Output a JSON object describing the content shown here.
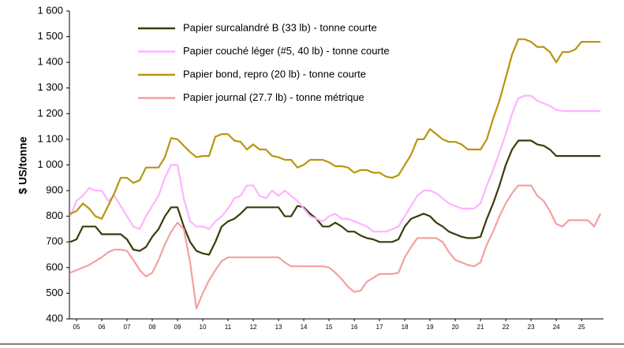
{
  "chart_data": {
    "type": "line",
    "y_label": "$ US/tonne",
    "x": [
      4.75,
      5,
      5.25,
      5.5,
      5.75,
      6,
      6.25,
      6.5,
      6.75,
      7,
      7.25,
      7.5,
      7.75,
      8,
      8.25,
      8.5,
      8.75,
      9,
      9.25,
      9.5,
      9.75,
      10,
      10.25,
      10.5,
      10.75,
      11,
      11.25,
      11.5,
      11.75,
      12,
      12.25,
      12.5,
      12.75,
      13,
      13.25,
      13.5,
      13.75,
      14,
      14.25,
      14.5,
      14.75,
      15,
      15.25,
      15.5,
      15.75,
      16,
      16.25,
      16.5,
      16.75,
      17,
      17.25,
      17.5,
      17.75,
      18,
      18.25,
      18.5,
      18.75,
      19,
      19.25,
      19.5,
      19.75,
      20,
      20.25,
      20.5,
      20.75,
      21,
      21.25,
      21.5,
      21.75,
      22,
      22.25,
      22.5,
      22.75,
      23,
      23.25,
      23.5,
      23.75,
      24,
      24.25,
      24.5,
      24.75,
      25,
      25.25,
      25.5,
      25.75
    ],
    "xlim": [
      4.72,
      25.87
    ],
    "xticks": [
      {
        "value": 5,
        "label": "05"
      },
      {
        "value": 6,
        "label": "06"
      },
      {
        "value": 7,
        "label": "07"
      },
      {
        "value": 8,
        "label": "08"
      },
      {
        "value": 9,
        "label": "09"
      },
      {
        "value": 10,
        "label": "10"
      },
      {
        "value": 11,
        "label": "11"
      },
      {
        "value": 12,
        "label": "12"
      },
      {
        "value": 13,
        "label": "13"
      },
      {
        "value": 14,
        "label": "14"
      },
      {
        "value": 15,
        "label": "15"
      },
      {
        "value": 16,
        "label": "16"
      },
      {
        "value": 17,
        "label": "17"
      },
      {
        "value": 18,
        "label": "18"
      },
      {
        "value": 19,
        "label": "19"
      },
      {
        "value": 20,
        "label": "20"
      },
      {
        "value": 21,
        "label": "21"
      },
      {
        "value": 22,
        "label": "22"
      },
      {
        "value": 23,
        "label": "23"
      },
      {
        "value": 24,
        "label": "24"
      },
      {
        "value": 25,
        "label": "25"
      }
    ],
    "ylim": [
      400,
      1600
    ],
    "yticks": [
      400,
      500,
      600,
      700,
      800,
      900,
      {
        "value": 1000,
        "label": "1 000"
      },
      {
        "value": 1100,
        "label": "1 100"
      },
      {
        "value": 1200,
        "label": "1 200"
      },
      {
        "value": 1300,
        "label": "1 300"
      },
      {
        "value": 1400,
        "label": "1 400"
      },
      {
        "value": 1500,
        "label": "1 500"
      },
      {
        "value": 1600,
        "label": "1 600"
      }
    ],
    "grid": false,
    "legend": "upper-left",
    "series": [
      {
        "name": "Papier surcalandré B (33 lb) - tonne courte",
        "color": "#3b3b0c",
        "values": [
          700,
          710,
          760,
          760,
          760,
          730,
          730,
          730,
          730,
          710,
          670,
          665,
          680,
          720,
          750,
          800,
          835,
          835,
          760,
          700,
          665,
          655,
          650,
          700,
          760,
          780,
          790,
          810,
          835,
          835,
          835,
          835,
          835,
          835,
          800,
          800,
          840,
          835,
          810,
          790,
          760,
          760,
          775,
          760,
          740,
          740,
          725,
          715,
          710,
          700,
          700,
          700,
          710,
          760,
          790,
          800,
          810,
          800,
          775,
          760,
          740,
          730,
          720,
          715,
          715,
          720,
          790,
          850,
          920,
          1000,
          1060,
          1095,
          1095,
          1095,
          1080,
          1075,
          1060,
          1035,
          1035,
          1035,
          1035,
          1035,
          1035,
          1035,
          1035
        ]
      },
      {
        "name": "Papier couché léger (#5, 40 lb) - tonne courte",
        "color": "#ffb3ff",
        "values": [
          800,
          860,
          880,
          910,
          900,
          900,
          860,
          880,
          840,
          800,
          760,
          750,
          800,
          840,
          880,
          950,
          1000,
          1000,
          870,
          780,
          760,
          760,
          750,
          780,
          800,
          830,
          870,
          880,
          920,
          920,
          880,
          870,
          900,
          880,
          900,
          880,
          860,
          830,
          800,
          790,
          780,
          800,
          810,
          790,
          790,
          780,
          770,
          760,
          740,
          740,
          740,
          750,
          760,
          800,
          840,
          880,
          900,
          900,
          890,
          870,
          850,
          840,
          830,
          830,
          830,
          850,
          920,
          980,
          1050,
          1120,
          1200,
          1260,
          1270,
          1270,
          1250,
          1240,
          1230,
          1215,
          1210,
          1210,
          1210,
          1210,
          1210,
          1210,
          1210
        ]
      },
      {
        "name": "Papier bond, repro (20 lb) - tonne courte",
        "color": "#b8950e",
        "values": [
          810,
          820,
          850,
          830,
          800,
          790,
          840,
          890,
          950,
          950,
          930,
          940,
          990,
          990,
          990,
          1030,
          1105,
          1100,
          1075,
          1050,
          1030,
          1035,
          1035,
          1110,
          1120,
          1120,
          1095,
          1090,
          1060,
          1080,
          1060,
          1060,
          1035,
          1030,
          1020,
          1020,
          990,
          1000,
          1020,
          1020,
          1020,
          1010,
          995,
          995,
          990,
          970,
          980,
          980,
          970,
          970,
          955,
          950,
          960,
          1000,
          1040,
          1100,
          1100,
          1140,
          1120,
          1100,
          1090,
          1090,
          1080,
          1060,
          1060,
          1060,
          1100,
          1180,
          1250,
          1340,
          1430,
          1490,
          1490,
          1480,
          1460,
          1460,
          1440,
          1400,
          1440,
          1440,
          1450,
          1480,
          1480,
          1480,
          1480
        ]
      },
      {
        "name": "Papier journal (27.7 lb) - tonne métrique",
        "color": "#f4a0a0",
        "values": [
          580,
          590,
          600,
          610,
          625,
          640,
          660,
          670,
          670,
          665,
          630,
          590,
          565,
          580,
          630,
          690,
          740,
          775,
          750,
          620,
          440,
          500,
          550,
          590,
          625,
          640,
          640,
          640,
          640,
          640,
          640,
          640,
          640,
          640,
          620,
          605,
          605,
          605,
          605,
          605,
          605,
          600,
          580,
          555,
          525,
          505,
          510,
          545,
          560,
          575,
          575,
          575,
          580,
          640,
          680,
          715,
          715,
          715,
          715,
          700,
          660,
          630,
          620,
          610,
          605,
          620,
          690,
          740,
          800,
          850,
          890,
          920,
          920,
          920,
          880,
          860,
          820,
          770,
          760,
          785,
          785,
          785,
          785,
          760,
          810
        ]
      }
    ]
  }
}
